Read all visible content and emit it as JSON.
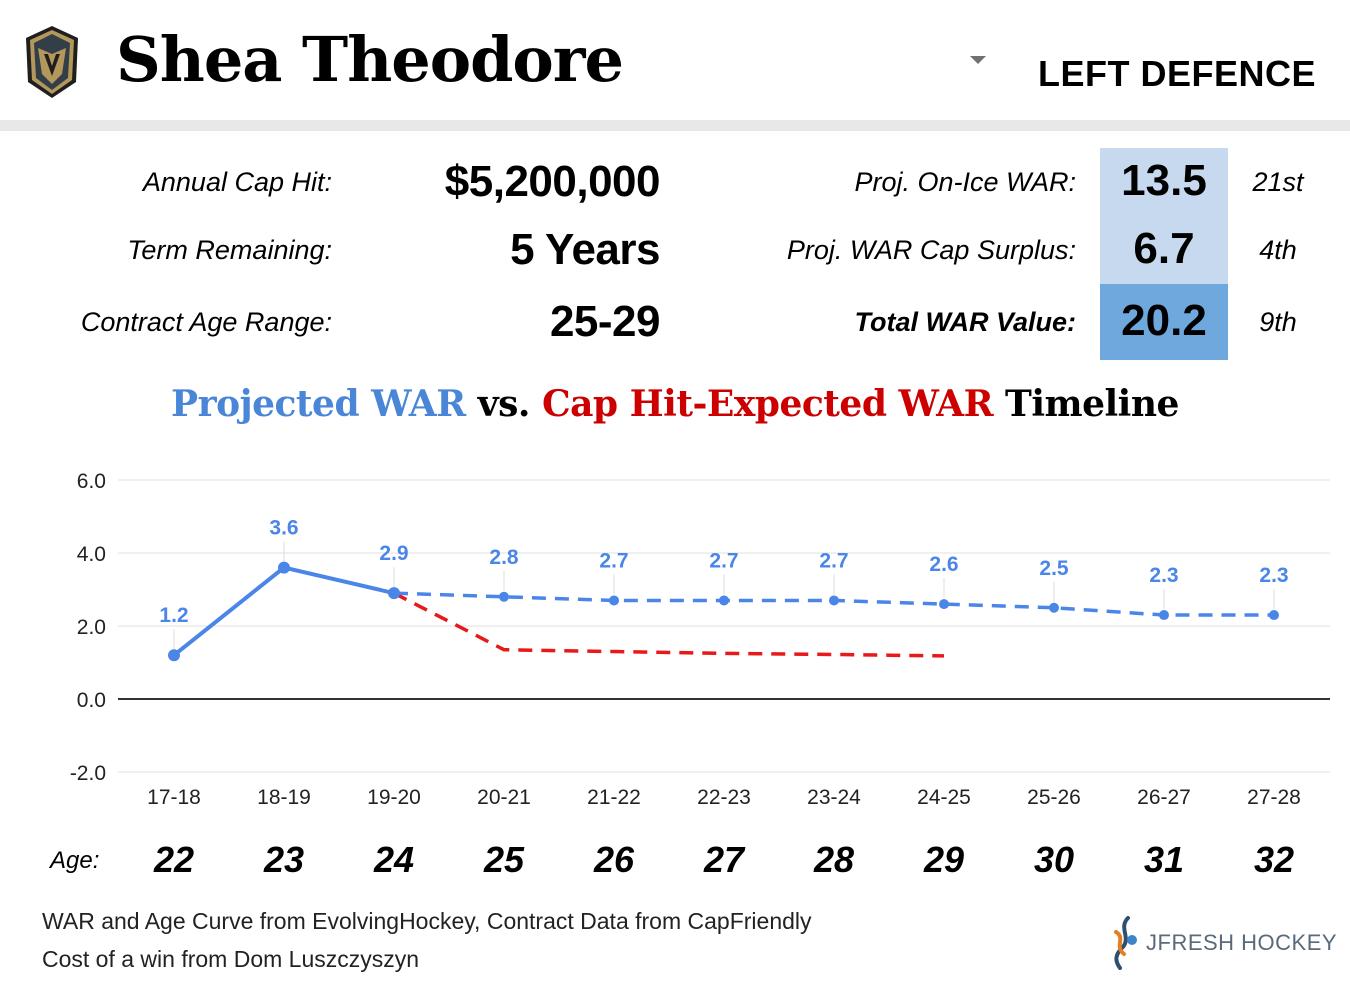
{
  "header": {
    "player_name": "Shea Theodore",
    "position": "LEFT DEFENCE",
    "team_logo_icon": "golden-knights-helmet-icon",
    "dropdown_icon": "caret-down-icon"
  },
  "contract": {
    "cap_hit_label": "Annual Cap Hit:",
    "cap_hit_value": "$5,200,000",
    "term_label": "Term Remaining:",
    "term_value": "5 Years",
    "age_range_label": "Contract Age Range:",
    "age_range_value": "25-29"
  },
  "war": {
    "onice_label": "Proj. On-Ice WAR:",
    "onice_value": "13.5",
    "onice_rank": "21st",
    "surplus_label": "Proj. WAR Cap Surplus:",
    "surplus_value": "6.7",
    "surplus_rank": "4th",
    "total_label": "Total WAR Value:",
    "total_value": "20.2",
    "total_rank": "9th",
    "colors": {
      "light": "#c6d9ee",
      "dark": "#6fa8dc"
    }
  },
  "chart_title": {
    "part1": "Projected WAR",
    "part2": " vs. ",
    "part3": "Cap Hit-Expected WAR",
    "part4": " Timeline",
    "color_projected": "#4a86d8",
    "color_expected": "#cc0000"
  },
  "chart_data": {
    "type": "line",
    "categories": [
      "17-18",
      "18-19",
      "19-20",
      "20-21",
      "21-22",
      "22-23",
      "23-24",
      "24-25",
      "25-26",
      "26-27",
      "27-28"
    ],
    "ylim": [
      -2.0,
      6.0
    ],
    "yticks": [
      "6.0",
      "4.0",
      "2.0",
      "0.0",
      "-2.0"
    ],
    "grid": true,
    "series": [
      {
        "key": "projected",
        "color": "#4a86e8",
        "values": [
          1.2,
          3.6,
          2.9,
          2.8,
          2.7,
          2.7,
          2.7,
          2.6,
          2.5,
          2.3,
          2.3
        ],
        "labels": [
          "1.2",
          "3.6",
          "2.9",
          "2.8",
          "2.7",
          "2.7",
          "2.7",
          "2.6",
          "2.5",
          "2.3",
          "2.3"
        ],
        "solid_until_index": 2
      },
      {
        "key": "expected",
        "color": "#e8191a",
        "values": [
          null,
          null,
          2.9,
          1.35,
          1.3,
          1.25,
          1.22,
          1.18,
          null,
          null,
          null
        ],
        "dashed": true
      }
    ]
  },
  "ages": {
    "label": "Age:",
    "values": [
      "22",
      "23",
      "24",
      "25",
      "26",
      "27",
      "28",
      "29",
      "30",
      "31",
      "32"
    ]
  },
  "footer": {
    "note1": "WAR and Age Curve from EvolvingHockey, Contract Data from CapFriendly",
    "note2": "Cost of a win from Dom Luszczyszyn",
    "brand": "JFRESH HOCKEY",
    "brand_icon": "jfresh-stick-logo-icon"
  }
}
